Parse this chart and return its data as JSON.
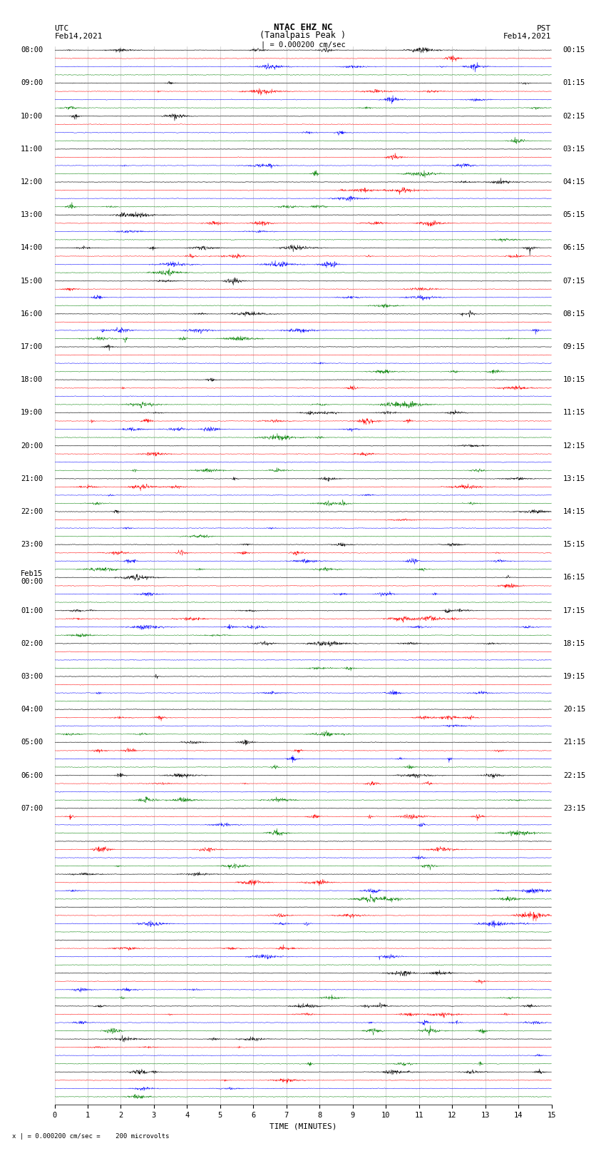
{
  "title_line1": "NTAC EHZ NC",
  "title_line2": "(Tanalpais Peak )",
  "title_line3": "| = 0.000200 cm/sec",
  "left_label_top": "UTC",
  "left_label_date": "Feb14,2021",
  "right_label_top": "PST",
  "right_label_date": "Feb14,2021",
  "footer_note": "x | = 0.000200 cm/sec =    200 microvolts",
  "xlabel": "TIME (MINUTES)",
  "xlim": [
    0,
    15
  ],
  "xticks": [
    0,
    1,
    2,
    3,
    4,
    5,
    6,
    7,
    8,
    9,
    10,
    11,
    12,
    13,
    14,
    15
  ],
  "background_color": "#ffffff",
  "trace_colors": [
    "black",
    "red",
    "blue",
    "green"
  ],
  "num_rows": 32,
  "traces_per_row": 4,
  "noise_amplitude": 0.03,
  "burst_amplitude": 0.18,
  "title_fontsize": 9,
  "label_fontsize": 8,
  "tick_fontsize": 7.5,
  "left_times_utc": [
    "08:00",
    "09:00",
    "10:00",
    "11:00",
    "12:00",
    "13:00",
    "14:00",
    "15:00",
    "16:00",
    "17:00",
    "18:00",
    "19:00",
    "20:00",
    "21:00",
    "22:00",
    "23:00",
    "Feb15\n00:00",
    "01:00",
    "02:00",
    "03:00",
    "04:00",
    "05:00",
    "06:00",
    "07:00",
    "",
    "",
    "",
    "",
    "",
    "",
    "",
    ""
  ],
  "right_times_pst": [
    "00:15",
    "01:15",
    "02:15",
    "03:15",
    "04:15",
    "05:15",
    "06:15",
    "07:15",
    "08:15",
    "09:15",
    "10:15",
    "11:15",
    "12:15",
    "13:15",
    "14:15",
    "15:15",
    "16:15",
    "17:15",
    "18:15",
    "19:15",
    "20:15",
    "21:15",
    "22:15",
    "23:15",
    "",
    "",
    "",
    "",
    "",
    "",
    "",
    ""
  ]
}
